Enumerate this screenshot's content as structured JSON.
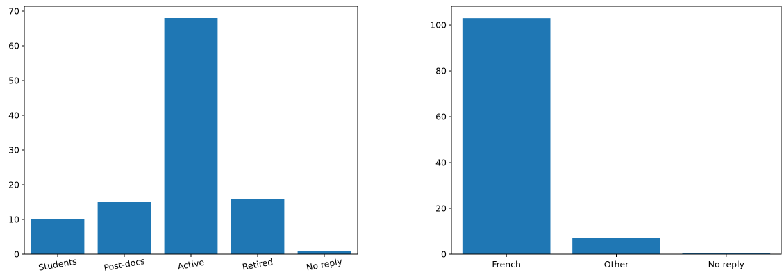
{
  "chart_data": [
    {
      "type": "bar",
      "categories": [
        "Students",
        "Post-docs",
        "Active",
        "Retired",
        "No reply"
      ],
      "values": [
        10,
        15,
        68,
        16,
        1
      ],
      "ylim": [
        0,
        71.4
      ],
      "yticks": [
        0,
        10,
        20,
        30,
        40,
        50,
        60,
        70
      ],
      "ytick_labels": [
        "0",
        "10",
        "20",
        "30",
        "40",
        "50",
        "60",
        "70"
      ],
      "bar_color": "#1f77b4",
      "x_label_rotation": -10,
      "grid": false
    },
    {
      "type": "bar",
      "categories": [
        "French",
        "Other",
        "No reply"
      ],
      "values": [
        103,
        7,
        0.3
      ],
      "ylim": [
        0,
        108.2
      ],
      "yticks": [
        0,
        20,
        40,
        60,
        80,
        100
      ],
      "ytick_labels": [
        "0",
        "20",
        "40",
        "60",
        "80",
        "100"
      ],
      "bar_color": "#1f77b4",
      "x_label_rotation": 0,
      "grid": false
    }
  ]
}
